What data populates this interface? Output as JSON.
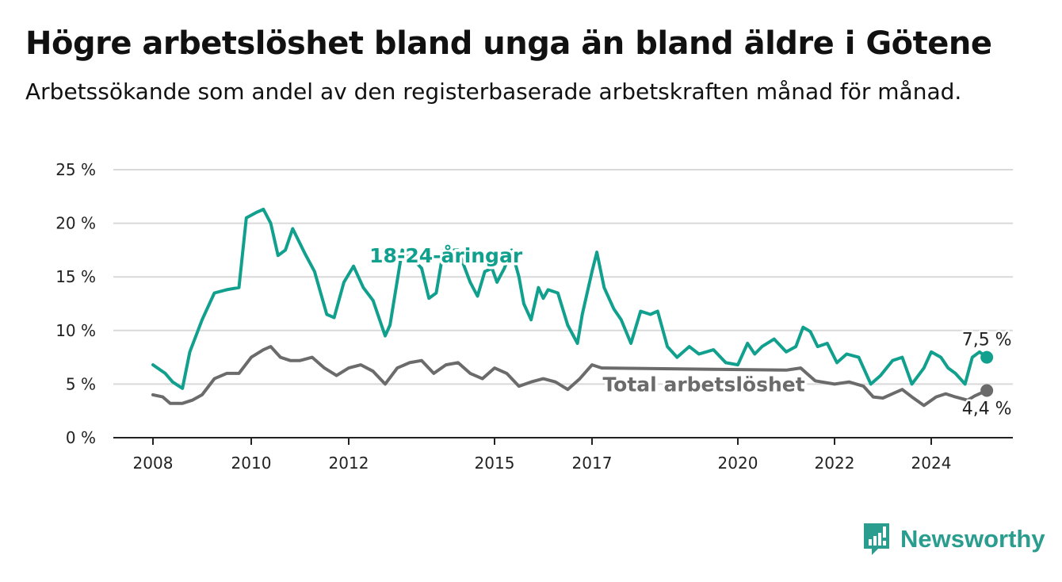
{
  "title": "Högre arbetslöshet bland unga än bland äldre i Götene",
  "subtitle": "Arbetssökande som andel av den registerbaserade arbetskraften månad för månad.",
  "brand": {
    "name": "Newsworthy",
    "color": "#2a9d8f",
    "icon": "bar-chart-exclamation-icon"
  },
  "chart_data": {
    "type": "line",
    "ylim": [
      0,
      25
    ],
    "yticks": [
      0,
      5,
      10,
      15,
      20,
      25
    ],
    "ytick_labels": [
      "0 %",
      "5 %",
      "10 %",
      "15 %",
      "20 %",
      "25 %"
    ],
    "xlim": [
      2008,
      2025.5
    ],
    "xticks": [
      2008,
      2010,
      2012,
      2015,
      2017,
      2020,
      2022,
      2024
    ],
    "xtick_labels": [
      "2008",
      "2010",
      "2012",
      "2015",
      "2017",
      "2020",
      "2022",
      "2024"
    ],
    "grid": true,
    "series": [
      {
        "name": "18-24-åringar",
        "color": "#12a08e",
        "end_label": "7,5 %",
        "points": [
          [
            2008.0,
            6.8
          ],
          [
            2008.25,
            6.0
          ],
          [
            2008.4,
            5.2
          ],
          [
            2008.6,
            4.6
          ],
          [
            2008.75,
            8.0
          ],
          [
            2009.0,
            11.0
          ],
          [
            2009.25,
            13.5
          ],
          [
            2009.5,
            13.8
          ],
          [
            2009.75,
            14.0
          ],
          [
            2009.9,
            20.5
          ],
          [
            2010.1,
            21.0
          ],
          [
            2010.25,
            21.3
          ],
          [
            2010.4,
            20.0
          ],
          [
            2010.55,
            17.0
          ],
          [
            2010.7,
            17.5
          ],
          [
            2010.85,
            19.5
          ],
          [
            2011.1,
            17.2
          ],
          [
            2011.3,
            15.5
          ],
          [
            2011.55,
            11.5
          ],
          [
            2011.7,
            11.2
          ],
          [
            2011.9,
            14.5
          ],
          [
            2012.1,
            16.0
          ],
          [
            2012.3,
            14.0
          ],
          [
            2012.5,
            12.8
          ],
          [
            2012.75,
            9.5
          ],
          [
            2012.85,
            10.5
          ],
          [
            2013.1,
            17.5
          ],
          [
            2013.25,
            17.0
          ],
          [
            2013.5,
            15.8
          ],
          [
            2013.65,
            13.0
          ],
          [
            2013.8,
            13.5
          ],
          [
            2013.95,
            17.5
          ],
          [
            2014.25,
            17.5
          ],
          [
            2014.5,
            14.5
          ],
          [
            2014.65,
            13.2
          ],
          [
            2014.8,
            15.5
          ],
          [
            2014.95,
            15.8
          ],
          [
            2015.05,
            14.5
          ],
          [
            2015.2,
            15.8
          ],
          [
            2015.35,
            17.5
          ],
          [
            2015.5,
            15.0
          ],
          [
            2015.6,
            12.5
          ],
          [
            2015.75,
            11.0
          ],
          [
            2015.9,
            14.0
          ],
          [
            2016.0,
            13.0
          ],
          [
            2016.1,
            13.8
          ],
          [
            2016.3,
            13.5
          ],
          [
            2016.5,
            10.5
          ],
          [
            2016.7,
            8.8
          ],
          [
            2016.8,
            11.5
          ],
          [
            2017.0,
            15.5
          ],
          [
            2017.1,
            17.3
          ],
          [
            2017.25,
            14.0
          ],
          [
            2017.45,
            12.0
          ],
          [
            2017.6,
            11.0
          ],
          [
            2017.8,
            8.8
          ],
          [
            2018.0,
            11.8
          ],
          [
            2018.2,
            11.5
          ],
          [
            2018.35,
            11.8
          ],
          [
            2018.55,
            8.5
          ],
          [
            2018.75,
            7.5
          ],
          [
            2019.0,
            8.5
          ],
          [
            2019.2,
            7.8
          ],
          [
            2019.5,
            8.2
          ],
          [
            2019.75,
            7.0
          ],
          [
            2020.0,
            6.8
          ],
          [
            2020.2,
            8.8
          ],
          [
            2020.35,
            7.8
          ],
          [
            2020.5,
            8.5
          ],
          [
            2020.75,
            9.2
          ],
          [
            2021.0,
            8.0
          ],
          [
            2021.2,
            8.5
          ],
          [
            2021.35,
            10.3
          ],
          [
            2021.5,
            9.9
          ],
          [
            2021.65,
            8.5
          ],
          [
            2021.85,
            8.8
          ],
          [
            2022.05,
            7.0
          ],
          [
            2022.25,
            7.8
          ],
          [
            2022.5,
            7.5
          ],
          [
            2022.75,
            5.0
          ],
          [
            2022.95,
            5.8
          ],
          [
            2023.2,
            7.2
          ],
          [
            2023.4,
            7.5
          ],
          [
            2023.6,
            5.0
          ],
          [
            2023.85,
            6.5
          ],
          [
            2024.0,
            8.0
          ],
          [
            2024.2,
            7.5
          ],
          [
            2024.35,
            6.5
          ],
          [
            2024.5,
            6.0
          ],
          [
            2024.7,
            5.0
          ],
          [
            2024.85,
            7.5
          ],
          [
            2025.0,
            8.0
          ],
          [
            2025.15,
            7.5
          ]
        ]
      },
      {
        "name": "Total arbetslöshet",
        "color": "#6b6b6b",
        "end_label": "4,4 %",
        "points": [
          [
            2008.0,
            4.0
          ],
          [
            2008.2,
            3.8
          ],
          [
            2008.35,
            3.2
          ],
          [
            2008.6,
            3.2
          ],
          [
            2008.8,
            3.5
          ],
          [
            2009.0,
            4.0
          ],
          [
            2009.25,
            5.5
          ],
          [
            2009.5,
            6.0
          ],
          [
            2009.75,
            6.0
          ],
          [
            2010.0,
            7.5
          ],
          [
            2010.25,
            8.2
          ],
          [
            2010.4,
            8.5
          ],
          [
            2010.6,
            7.5
          ],
          [
            2010.8,
            7.2
          ],
          [
            2011.0,
            7.2
          ],
          [
            2011.25,
            7.5
          ],
          [
            2011.5,
            6.5
          ],
          [
            2011.75,
            5.8
          ],
          [
            2012.0,
            6.5
          ],
          [
            2012.25,
            6.8
          ],
          [
            2012.5,
            6.2
          ],
          [
            2012.75,
            5.0
          ],
          [
            2013.0,
            6.5
          ],
          [
            2013.25,
            7.0
          ],
          [
            2013.5,
            7.2
          ],
          [
            2013.75,
            6.0
          ],
          [
            2014.0,
            6.8
          ],
          [
            2014.25,
            7.0
          ],
          [
            2014.5,
            6.0
          ],
          [
            2014.75,
            5.5
          ],
          [
            2015.0,
            6.5
          ],
          [
            2015.25,
            6.0
          ],
          [
            2015.5,
            4.8
          ],
          [
            2015.75,
            5.2
          ],
          [
            2016.0,
            5.5
          ],
          [
            2016.25,
            5.2
          ],
          [
            2016.5,
            4.5
          ],
          [
            2016.75,
            5.5
          ],
          [
            2017.0,
            6.8
          ],
          [
            2017.2,
            6.5
          ],
          [
            2021.0,
            6.3
          ],
          [
            2021.3,
            6.5
          ],
          [
            2021.6,
            5.3
          ],
          [
            2022.0,
            5.0
          ],
          [
            2022.3,
            5.2
          ],
          [
            2022.6,
            4.8
          ],
          [
            2022.8,
            3.8
          ],
          [
            2023.0,
            3.7
          ],
          [
            2023.25,
            4.2
          ],
          [
            2023.4,
            4.5
          ],
          [
            2023.6,
            3.8
          ],
          [
            2023.85,
            3.0
          ],
          [
            2024.1,
            3.8
          ],
          [
            2024.3,
            4.1
          ],
          [
            2024.5,
            3.8
          ],
          [
            2024.75,
            3.5
          ],
          [
            2024.9,
            3.9
          ],
          [
            2025.05,
            4.2
          ],
          [
            2025.15,
            4.4
          ]
        ]
      }
    ],
    "annotations": [
      {
        "text": "18-24-åringar",
        "x": 2014.0,
        "y": 17.0,
        "color": "#12a08e"
      },
      {
        "text": "Total arbetslöshet",
        "x": 2019.3,
        "y": 5.0,
        "color": "#6b6b6b"
      }
    ]
  }
}
